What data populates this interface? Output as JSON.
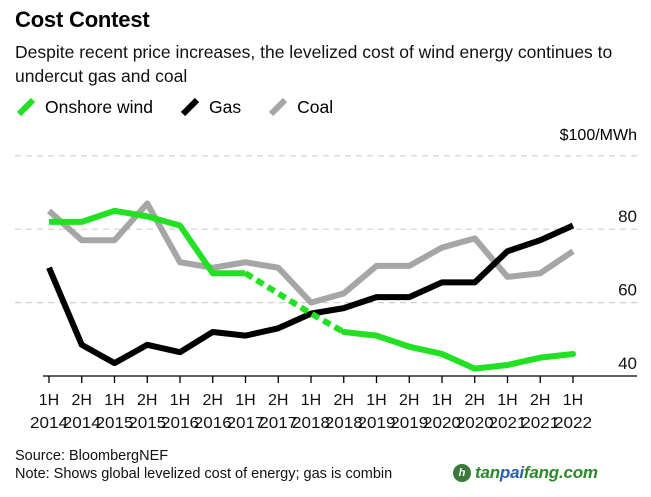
{
  "header": {
    "title": "Cost Contest",
    "subtitle": "Despite recent price increases, the levelized cost of wind energy continues to undercut gas and coal"
  },
  "footer": {
    "source": "Source: BloombergNEF",
    "note": "Note: Shows global levelized cost of energy; gas is combin"
  },
  "watermark": {
    "icon": "tanpaifang-logo-icon",
    "text_a": "tan",
    "text_b": "pai",
    "text_c": "fang.com"
  },
  "chart_data": {
    "type": "line",
    "title": "Cost Contest",
    "subtitle": "Despite recent price increases, the levelized cost of wind energy continues to undercut gas and coal",
    "xlabel": "",
    "ylabel": "$100/MWh",
    "unit_label": "$100/MWh",
    "ylim": [
      40,
      100
    ],
    "yticks": [
      40,
      60,
      80,
      100
    ],
    "ytick_labels": [
      "40",
      "60",
      "80",
      ""
    ],
    "grid": true,
    "legend_position": "top-left",
    "categories": [
      {
        "half": "1H",
        "year": "2014"
      },
      {
        "half": "2H",
        "year": "2014"
      },
      {
        "half": "1H",
        "year": "2015"
      },
      {
        "half": "2H",
        "year": "2015"
      },
      {
        "half": "1H",
        "year": "2016"
      },
      {
        "half": "2H",
        "year": "2016"
      },
      {
        "half": "1H",
        "year": "2017"
      },
      {
        "half": "2H",
        "year": "2017"
      },
      {
        "half": "1H",
        "year": "2018"
      },
      {
        "half": "2H",
        "year": "2018"
      },
      {
        "half": "1H",
        "year": "2019"
      },
      {
        "half": "2H",
        "year": "2019"
      },
      {
        "half": "1H",
        "year": "2020"
      },
      {
        "half": "2H",
        "year": "2020"
      },
      {
        "half": "1H",
        "year": "2021"
      },
      {
        "half": "2H",
        "year": "2021"
      },
      {
        "half": "1H",
        "year": "2022"
      }
    ],
    "series": [
      {
        "name": "Onshore wind",
        "color": "#22e022",
        "values": [
          82,
          82,
          85,
          83.5,
          81,
          68,
          68,
          62.5,
          57,
          52,
          51,
          48,
          46,
          42,
          43,
          45,
          46
        ],
        "dashed_range": [
          6,
          8
        ]
      },
      {
        "name": "Gas",
        "color": "#000000",
        "values": [
          69.5,
          48.5,
          43.5,
          48.5,
          46.5,
          52,
          51,
          53,
          57,
          58.5,
          61.5,
          61.5,
          65.5,
          65.5,
          74,
          77,
          81
        ]
      },
      {
        "name": "Coal",
        "color": "#a6a6a6",
        "values": [
          85,
          77,
          77,
          87,
          71,
          69.5,
          71,
          69.5,
          60,
          62.5,
          70,
          70,
          75,
          77.5,
          67,
          68,
          74
        ]
      }
    ]
  }
}
